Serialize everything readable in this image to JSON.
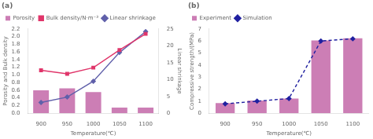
{
  "chart_data": [
    {
      "type": "bar",
      "title": "(a)",
      "xlabel": "Temperature(℃)",
      "ylabel": "Porosity and Bulk density",
      "y2label": "Linear shrinkage",
      "categories": [
        "900",
        "950",
        "1000",
        "1050",
        "1100"
      ],
      "series": [
        {
          "name": "Porosity",
          "type": "bar",
          "color": "#cc7eb5",
          "values": [
            0.6,
            0.65,
            0.55,
            0.15,
            0.15
          ]
        },
        {
          "name": "Bulk density/N·m⁻³",
          "type": "line",
          "color": "#e0356a",
          "marker": "square",
          "line_style": "solid",
          "values": [
            1.12,
            1.03,
            1.19,
            1.65,
            2.07
          ]
        },
        {
          "name": "Linear shrinkage",
          "type": "line",
          "color": "#6060aa",
          "marker": "diamond",
          "line_style": "solid",
          "axis": "y2",
          "values": [
            3.2,
            4.8,
            9.5,
            18.0,
            24.2
          ]
        }
      ],
      "ylim": [
        0,
        2.2
      ],
      "yticks": [
        {
          "value": 0.0,
          "label": "0.0"
        },
        0.2,
        0.4,
        0.6,
        0.8,
        {
          "value": 1.0,
          "label": "1.0"
        },
        1.2,
        1.4,
        1.6,
        1.8,
        {
          "value": 2.0,
          "label": "2.0"
        },
        2.2
      ],
      "y2lim": [
        0,
        25
      ],
      "y2ticks": [
        0,
        5,
        10,
        15,
        20,
        25
      ],
      "grid": false,
      "legend": "upper left"
    },
    {
      "type": "bar",
      "title": "(b)",
      "xlabel": "Temperature(℃)",
      "ylabel": "Compressive strength/(MPa)",
      "categories": [
        "900",
        "950",
        "1000",
        "1050",
        "1100"
      ],
      "series": [
        {
          "name": "Experiment",
          "type": "bar",
          "color": "#cc7eb5",
          "values": [
            0.85,
            1.05,
            1.22,
            6.05,
            6.22
          ]
        },
        {
          "name": "Simulation",
          "type": "line",
          "color": "#2020a0",
          "marker": "diamond",
          "line_style": "dashed",
          "values": [
            0.78,
            1.0,
            1.22,
            6.0,
            6.18
          ]
        }
      ],
      "ylim": [
        0,
        7
      ],
      "yticks": [
        0,
        1,
        2,
        3,
        4,
        5,
        6,
        7
      ],
      "grid": false,
      "legend": "upper left"
    }
  ]
}
